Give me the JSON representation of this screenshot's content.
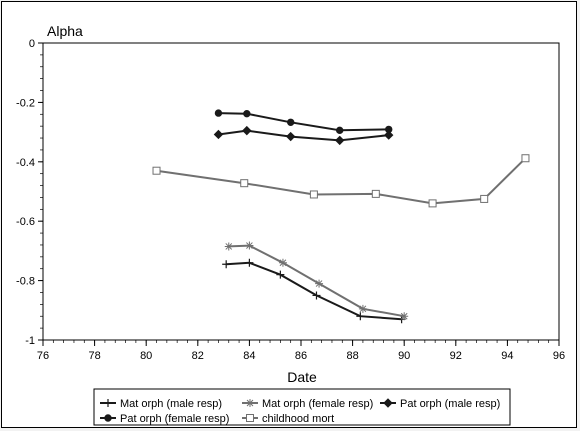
{
  "chart_data": {
    "type": "line",
    "title": "",
    "ylabel": "Alpha",
    "xlabel": "Date",
    "xlim": [
      76,
      96
    ],
    "ylim": [
      -1,
      0
    ],
    "x_ticks": [
      "76",
      "78",
      "80",
      "82",
      "84",
      "86",
      "88",
      "90",
      "92",
      "94",
      "96"
    ],
    "y_ticks": [
      "0",
      "-0.2",
      "-0.4",
      "-0.6",
      "-0.8",
      "-1"
    ],
    "grid": false,
    "legend_position": "bottom",
    "series": [
      {
        "name": "Mat orph (male resp)",
        "color": "#1a1a1a",
        "marker": "plus",
        "x": [
          83.1,
          84,
          85.2,
          86.6,
          88.3,
          89.9
        ],
        "y": [
          -0.745,
          -0.74,
          -0.78,
          -0.85,
          -0.92,
          -0.93
        ]
      },
      {
        "name": "Mat orph (female resp)",
        "color": "#707070",
        "marker": "asterisk",
        "x": [
          83.2,
          84,
          85.3,
          86.7,
          88.4,
          90.0
        ],
        "y": [
          -0.685,
          -0.682,
          -0.74,
          -0.81,
          -0.895,
          -0.92
        ]
      },
      {
        "name": "Pat orph (male resp)",
        "color": "#1a1a1a",
        "marker": "diamond",
        "x": [
          82.8,
          83.9,
          85.6,
          87.5,
          89.4
        ],
        "y": [
          -0.308,
          -0.295,
          -0.315,
          -0.328,
          -0.31
        ]
      },
      {
        "name": "Pat orph (female resp)",
        "color": "#1a1a1a",
        "marker": "circle",
        "x": [
          82.8,
          83.9,
          85.6,
          87.5,
          89.4
        ],
        "y": [
          -0.236,
          -0.238,
          -0.267,
          -0.294,
          -0.291
        ]
      },
      {
        "name": "childhood mort",
        "color": "#707070",
        "marker": "square",
        "x": [
          80.4,
          83.8,
          86.5,
          88.9,
          91.1,
          93.1,
          94.7
        ],
        "y": [
          -0.43,
          -0.472,
          -0.51,
          -0.508,
          -0.54,
          -0.525,
          -0.388
        ]
      }
    ]
  }
}
